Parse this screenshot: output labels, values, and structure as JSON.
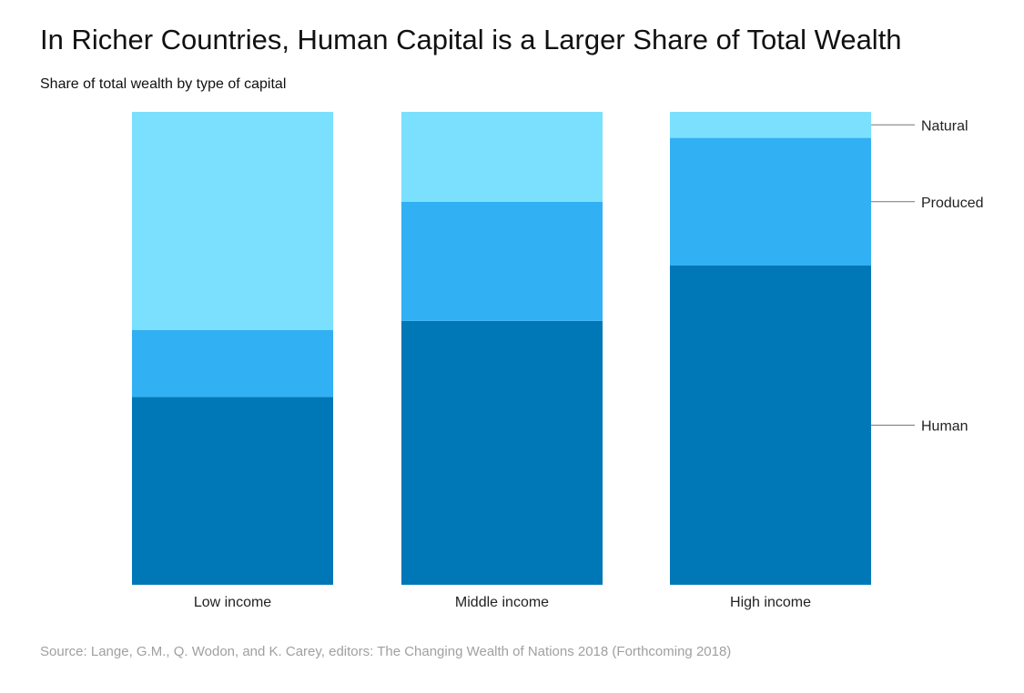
{
  "chart_data": {
    "type": "bar",
    "stacked": true,
    "normalized": true,
    "title": "In Richer Countries, Human Capital is a Larger Share of Total Wealth",
    "subtitle": "Share of total wealth by type of capital",
    "categories": [
      "Low income",
      "Middle income",
      "High income"
    ],
    "series": [
      {
        "name": "Human",
        "color": "#0077b6",
        "values": [
          0.397,
          0.558,
          0.675
        ]
      },
      {
        "name": "Produced",
        "color": "#31b0f3",
        "values": [
          0.142,
          0.252,
          0.27
        ]
      },
      {
        "name": "Natural",
        "color": "#7ae0fd",
        "values": [
          0.461,
          0.19,
          0.055
        ]
      }
    ],
    "ylim": [
      0,
      1
    ],
    "grid": false,
    "legend": "right, labels on high income bar",
    "source": "Source: Lange, G.M., Q. Wodon, and K. Carey, editors: The Changing Wealth of Nations 2018 (Forthcoming 2018)"
  }
}
